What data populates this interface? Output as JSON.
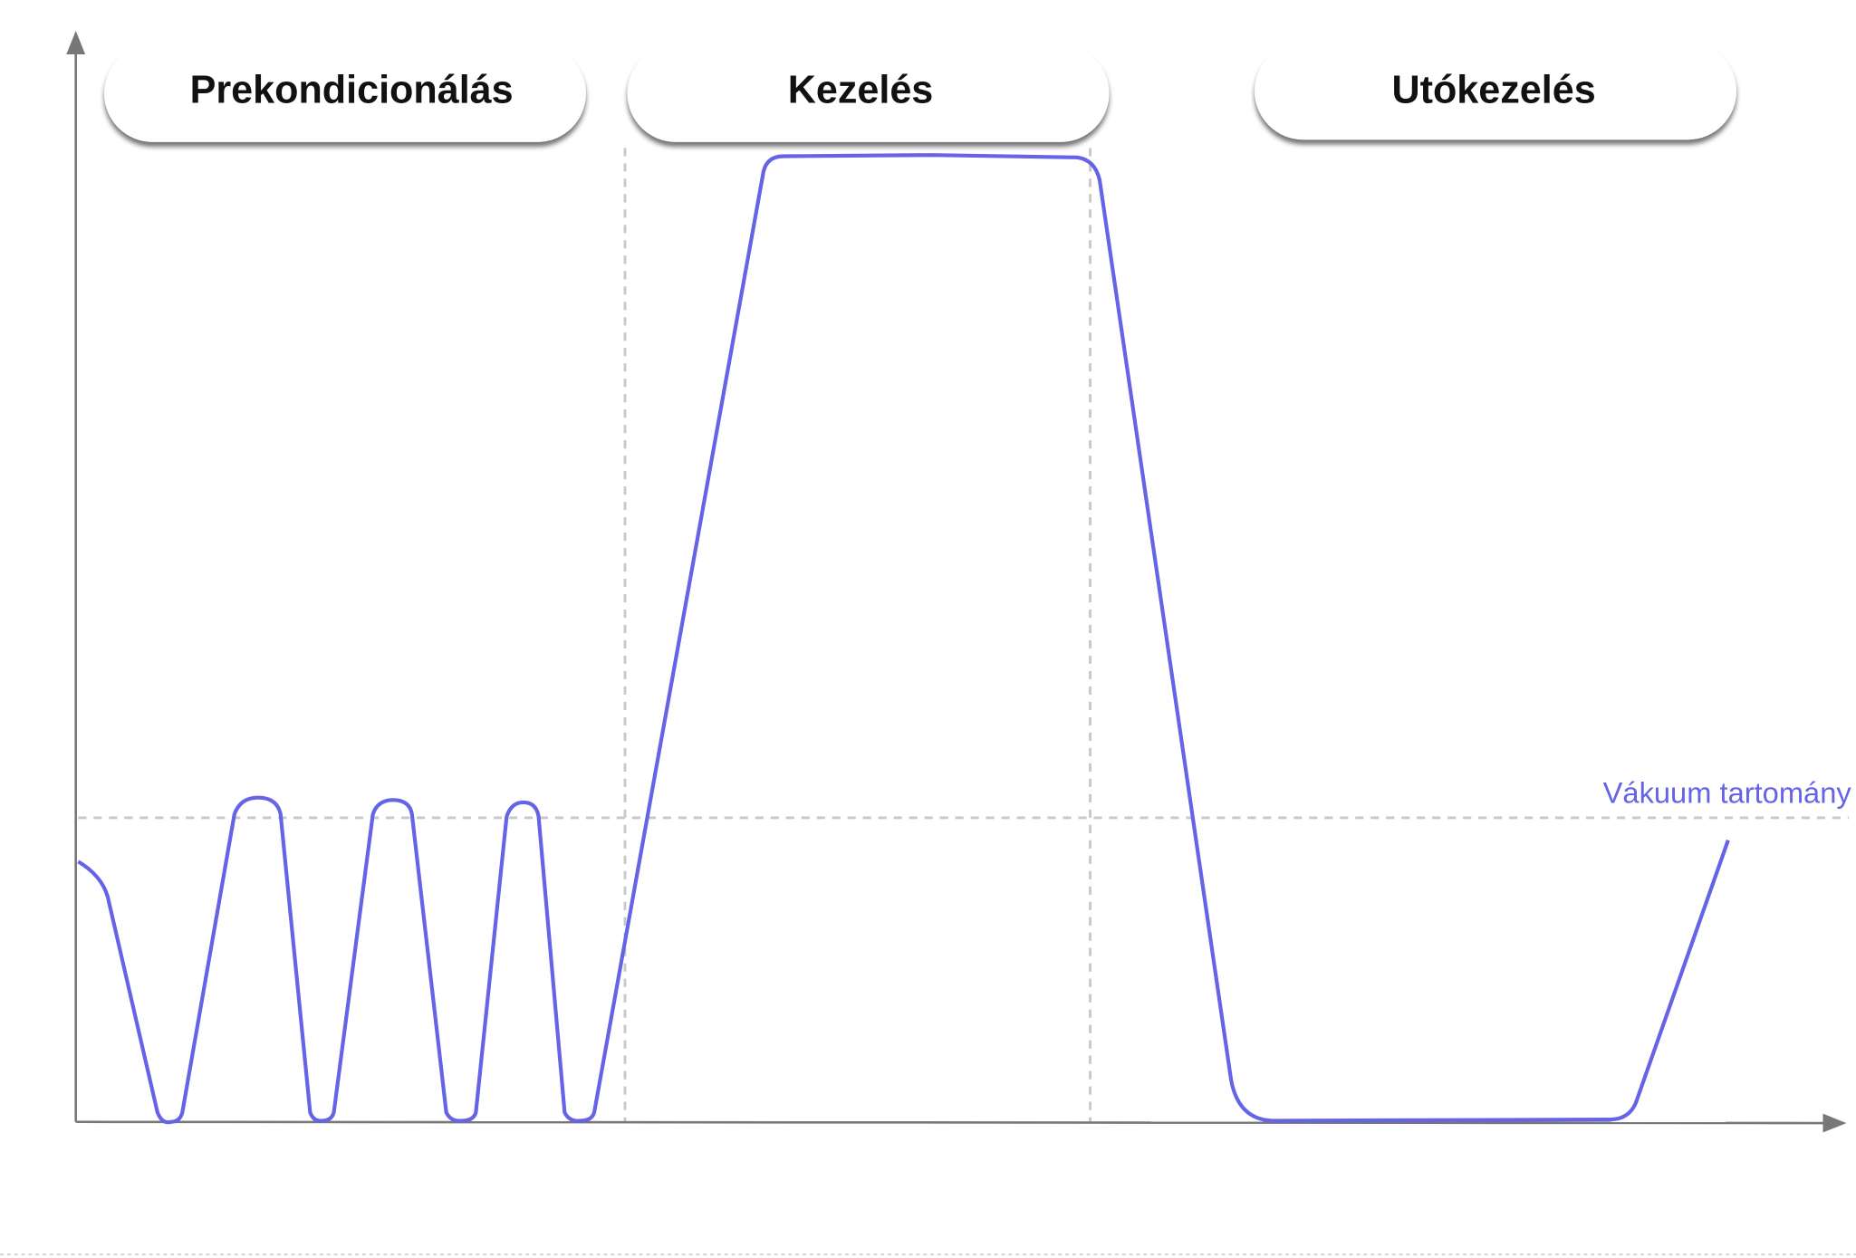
{
  "phases": [
    {
      "label": "Prekondicionálás"
    },
    {
      "label": "Kezelés"
    },
    {
      "label": "Utókezelés"
    }
  ],
  "vacuum_label": "Vákuum tartomány"
}
